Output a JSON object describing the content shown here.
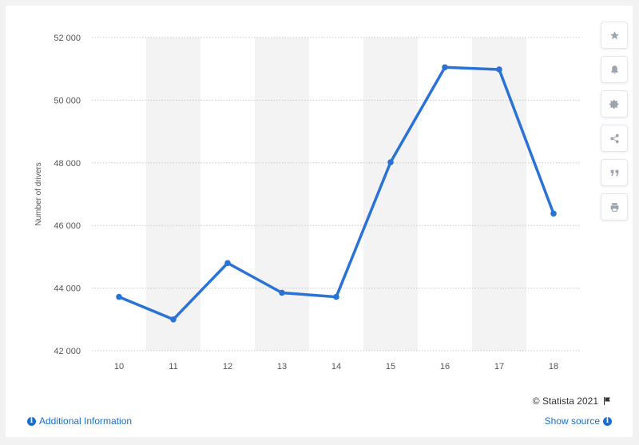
{
  "chart_data": {
    "type": "line",
    "x": [
      "10",
      "11",
      "12",
      "13",
      "14",
      "15",
      "16",
      "17",
      "18"
    ],
    "series": [
      {
        "values": [
          43720,
          43000,
          44800,
          43850,
          43720,
          48020,
          51050,
          50980,
          46380
        ]
      }
    ],
    "xlabel": "",
    "ylabel": "Number of drivers",
    "ylim": [
      42000,
      52000
    ],
    "yticks": [
      42000,
      44000,
      46000,
      48000,
      50000,
      52000
    ],
    "ytick_labels": [
      "42 000",
      "44 000",
      "46 000",
      "48 000",
      "50 000",
      "52 000"
    ],
    "line_color": "#2a72d6",
    "grid": true,
    "legend": "none"
  },
  "toolbar": {
    "buttons": [
      {
        "icon": "star-icon",
        "glyph": "★"
      },
      {
        "icon": "bell-icon",
        "glyph": "🔔"
      },
      {
        "icon": "gear-icon",
        "glyph": "⚙"
      },
      {
        "icon": "share-icon",
        "glyph": "share"
      },
      {
        "icon": "quote-icon",
        "glyph": "❞"
      },
      {
        "icon": "print-icon",
        "glyph": "print"
      }
    ]
  },
  "footer": {
    "credit": "© Statista 2021",
    "additional_info": "Additional Information",
    "show_source": "Show source"
  }
}
